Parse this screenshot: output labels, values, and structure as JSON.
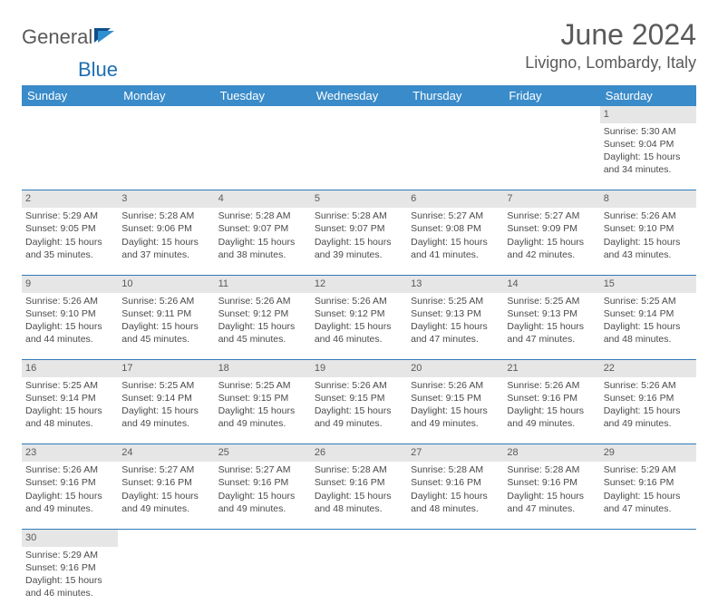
{
  "brand": {
    "name_part1": "General",
    "name_part2": "Blue"
  },
  "header": {
    "title": "June 2024",
    "location": "Livigno, Lombardy, Italy"
  },
  "colors": {
    "header_bg": "#3a8bc9",
    "daynum_bg": "#e6e6e6",
    "border": "#2f7ab8",
    "text": "#4a4a4a",
    "title_text": "#5a5a5a"
  },
  "weekdays": [
    "Sunday",
    "Monday",
    "Tuesday",
    "Wednesday",
    "Thursday",
    "Friday",
    "Saturday"
  ],
  "weeks": [
    {
      "days": [
        null,
        null,
        null,
        null,
        null,
        null,
        {
          "n": 1,
          "sunrise": "5:30 AM",
          "sunset": "9:04 PM",
          "daylight": "15 hours and 34 minutes."
        }
      ]
    },
    {
      "days": [
        {
          "n": 2,
          "sunrise": "5:29 AM",
          "sunset": "9:05 PM",
          "daylight": "15 hours and 35 minutes."
        },
        {
          "n": 3,
          "sunrise": "5:28 AM",
          "sunset": "9:06 PM",
          "daylight": "15 hours and 37 minutes."
        },
        {
          "n": 4,
          "sunrise": "5:28 AM",
          "sunset": "9:07 PM",
          "daylight": "15 hours and 38 minutes."
        },
        {
          "n": 5,
          "sunrise": "5:28 AM",
          "sunset": "9:07 PM",
          "daylight": "15 hours and 39 minutes."
        },
        {
          "n": 6,
          "sunrise": "5:27 AM",
          "sunset": "9:08 PM",
          "daylight": "15 hours and 41 minutes."
        },
        {
          "n": 7,
          "sunrise": "5:27 AM",
          "sunset": "9:09 PM",
          "daylight": "15 hours and 42 minutes."
        },
        {
          "n": 8,
          "sunrise": "5:26 AM",
          "sunset": "9:10 PM",
          "daylight": "15 hours and 43 minutes."
        }
      ]
    },
    {
      "days": [
        {
          "n": 9,
          "sunrise": "5:26 AM",
          "sunset": "9:10 PM",
          "daylight": "15 hours and 44 minutes."
        },
        {
          "n": 10,
          "sunrise": "5:26 AM",
          "sunset": "9:11 PM",
          "daylight": "15 hours and 45 minutes."
        },
        {
          "n": 11,
          "sunrise": "5:26 AM",
          "sunset": "9:12 PM",
          "daylight": "15 hours and 45 minutes."
        },
        {
          "n": 12,
          "sunrise": "5:26 AM",
          "sunset": "9:12 PM",
          "daylight": "15 hours and 46 minutes."
        },
        {
          "n": 13,
          "sunrise": "5:25 AM",
          "sunset": "9:13 PM",
          "daylight": "15 hours and 47 minutes."
        },
        {
          "n": 14,
          "sunrise": "5:25 AM",
          "sunset": "9:13 PM",
          "daylight": "15 hours and 47 minutes."
        },
        {
          "n": 15,
          "sunrise": "5:25 AM",
          "sunset": "9:14 PM",
          "daylight": "15 hours and 48 minutes."
        }
      ]
    },
    {
      "days": [
        {
          "n": 16,
          "sunrise": "5:25 AM",
          "sunset": "9:14 PM",
          "daylight": "15 hours and 48 minutes."
        },
        {
          "n": 17,
          "sunrise": "5:25 AM",
          "sunset": "9:14 PM",
          "daylight": "15 hours and 49 minutes."
        },
        {
          "n": 18,
          "sunrise": "5:25 AM",
          "sunset": "9:15 PM",
          "daylight": "15 hours and 49 minutes."
        },
        {
          "n": 19,
          "sunrise": "5:26 AM",
          "sunset": "9:15 PM",
          "daylight": "15 hours and 49 minutes."
        },
        {
          "n": 20,
          "sunrise": "5:26 AM",
          "sunset": "9:15 PM",
          "daylight": "15 hours and 49 minutes."
        },
        {
          "n": 21,
          "sunrise": "5:26 AM",
          "sunset": "9:16 PM",
          "daylight": "15 hours and 49 minutes."
        },
        {
          "n": 22,
          "sunrise": "5:26 AM",
          "sunset": "9:16 PM",
          "daylight": "15 hours and 49 minutes."
        }
      ]
    },
    {
      "days": [
        {
          "n": 23,
          "sunrise": "5:26 AM",
          "sunset": "9:16 PM",
          "daylight": "15 hours and 49 minutes."
        },
        {
          "n": 24,
          "sunrise": "5:27 AM",
          "sunset": "9:16 PM",
          "daylight": "15 hours and 49 minutes."
        },
        {
          "n": 25,
          "sunrise": "5:27 AM",
          "sunset": "9:16 PM",
          "daylight": "15 hours and 49 minutes."
        },
        {
          "n": 26,
          "sunrise": "5:28 AM",
          "sunset": "9:16 PM",
          "daylight": "15 hours and 48 minutes."
        },
        {
          "n": 27,
          "sunrise": "5:28 AM",
          "sunset": "9:16 PM",
          "daylight": "15 hours and 48 minutes."
        },
        {
          "n": 28,
          "sunrise": "5:28 AM",
          "sunset": "9:16 PM",
          "daylight": "15 hours and 47 minutes."
        },
        {
          "n": 29,
          "sunrise": "5:29 AM",
          "sunset": "9:16 PM",
          "daylight": "15 hours and 47 minutes."
        }
      ]
    },
    {
      "days": [
        {
          "n": 30,
          "sunrise": "5:29 AM",
          "sunset": "9:16 PM",
          "daylight": "15 hours and 46 minutes."
        },
        null,
        null,
        null,
        null,
        null,
        null
      ]
    }
  ],
  "labels": {
    "sunrise_prefix": "Sunrise: ",
    "sunset_prefix": "Sunset: ",
    "daylight_prefix": "Daylight: "
  }
}
